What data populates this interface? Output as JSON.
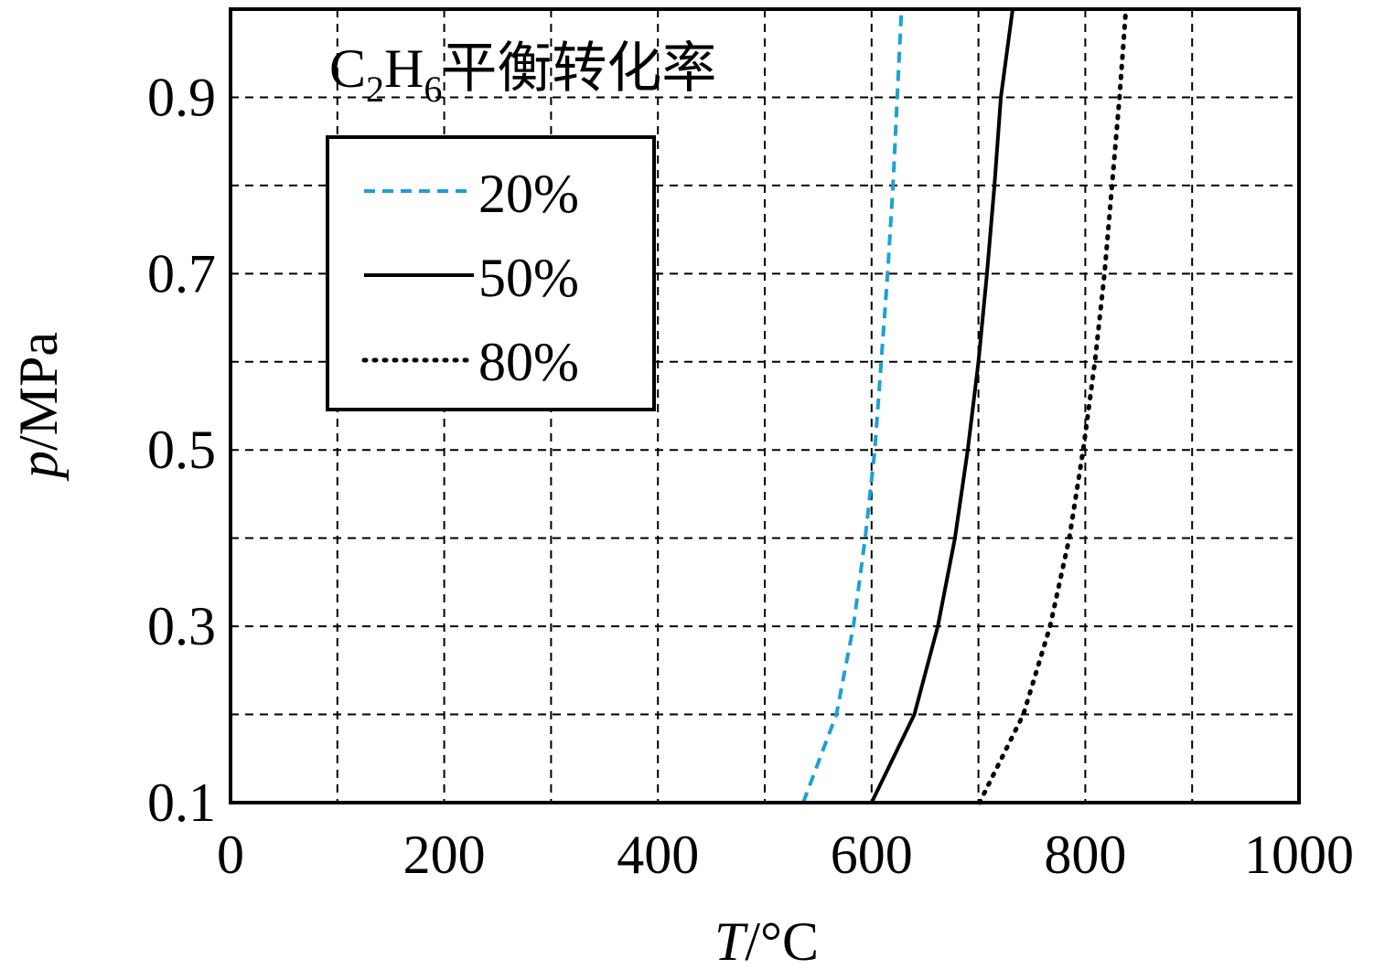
{
  "chart_data": {
    "type": "line",
    "title": "C₂H₆平衡转化率",
    "title_parts": {
      "base1": "C",
      "sub1": "2",
      "base2": "H",
      "sub2": "6",
      "suffix": "平衡转化率"
    },
    "xlabel": {
      "var": "T",
      "unit": "/°C"
    },
    "ylabel": {
      "var": "p",
      "unit": "/MPa"
    },
    "xlim": [
      0,
      1000
    ],
    "ylim": [
      0.1,
      1.0
    ],
    "x_ticks": [
      0,
      200,
      400,
      600,
      800,
      1000
    ],
    "x_tick_labels": [
      "0",
      "200",
      "400",
      "600",
      "800",
      "1000"
    ],
    "x_grid": [
      100,
      200,
      300,
      400,
      500,
      600,
      700,
      800,
      900
    ],
    "y_ticks": [
      0.1,
      0.3,
      0.5,
      0.7,
      0.9
    ],
    "y_tick_labels": [
      "0.1",
      "0.3",
      "0.5",
      "0.7",
      "0.9"
    ],
    "y_grid": [
      0.2,
      0.3,
      0.4,
      0.5,
      0.6,
      0.7,
      0.8,
      0.9
    ],
    "grid": true,
    "legend_position": "upper-left",
    "series": [
      {
        "name": "20%",
        "style": "dashed",
        "color": "#1ba1d8",
        "points": [
          [
            536,
            0.1
          ],
          [
            567,
            0.2
          ],
          [
            583,
            0.3
          ],
          [
            594,
            0.4
          ],
          [
            603,
            0.5
          ],
          [
            609,
            0.6
          ],
          [
            615,
            0.7
          ],
          [
            620,
            0.8
          ],
          [
            624,
            0.9
          ],
          [
            628,
            1.0
          ]
        ]
      },
      {
        "name": "50%",
        "style": "solid",
        "color": "#000000",
        "points": [
          [
            600,
            0.1
          ],
          [
            640,
            0.2
          ],
          [
            662,
            0.3
          ],
          [
            678,
            0.4
          ],
          [
            690,
            0.5
          ],
          [
            700,
            0.6
          ],
          [
            708,
            0.7
          ],
          [
            715,
            0.8
          ],
          [
            721,
            0.9
          ],
          [
            732,
            1.0
          ]
        ]
      },
      {
        "name": "80%",
        "style": "dotted",
        "color": "#000000",
        "points": [
          [
            701,
            0.1
          ],
          [
            742,
            0.2
          ],
          [
            767,
            0.3
          ],
          [
            785,
            0.4
          ],
          [
            798,
            0.5
          ],
          [
            809,
            0.6
          ],
          [
            818,
            0.7
          ],
          [
            825,
            0.8
          ],
          [
            832,
            0.9
          ],
          [
            838,
            1.0
          ]
        ]
      }
    ]
  }
}
